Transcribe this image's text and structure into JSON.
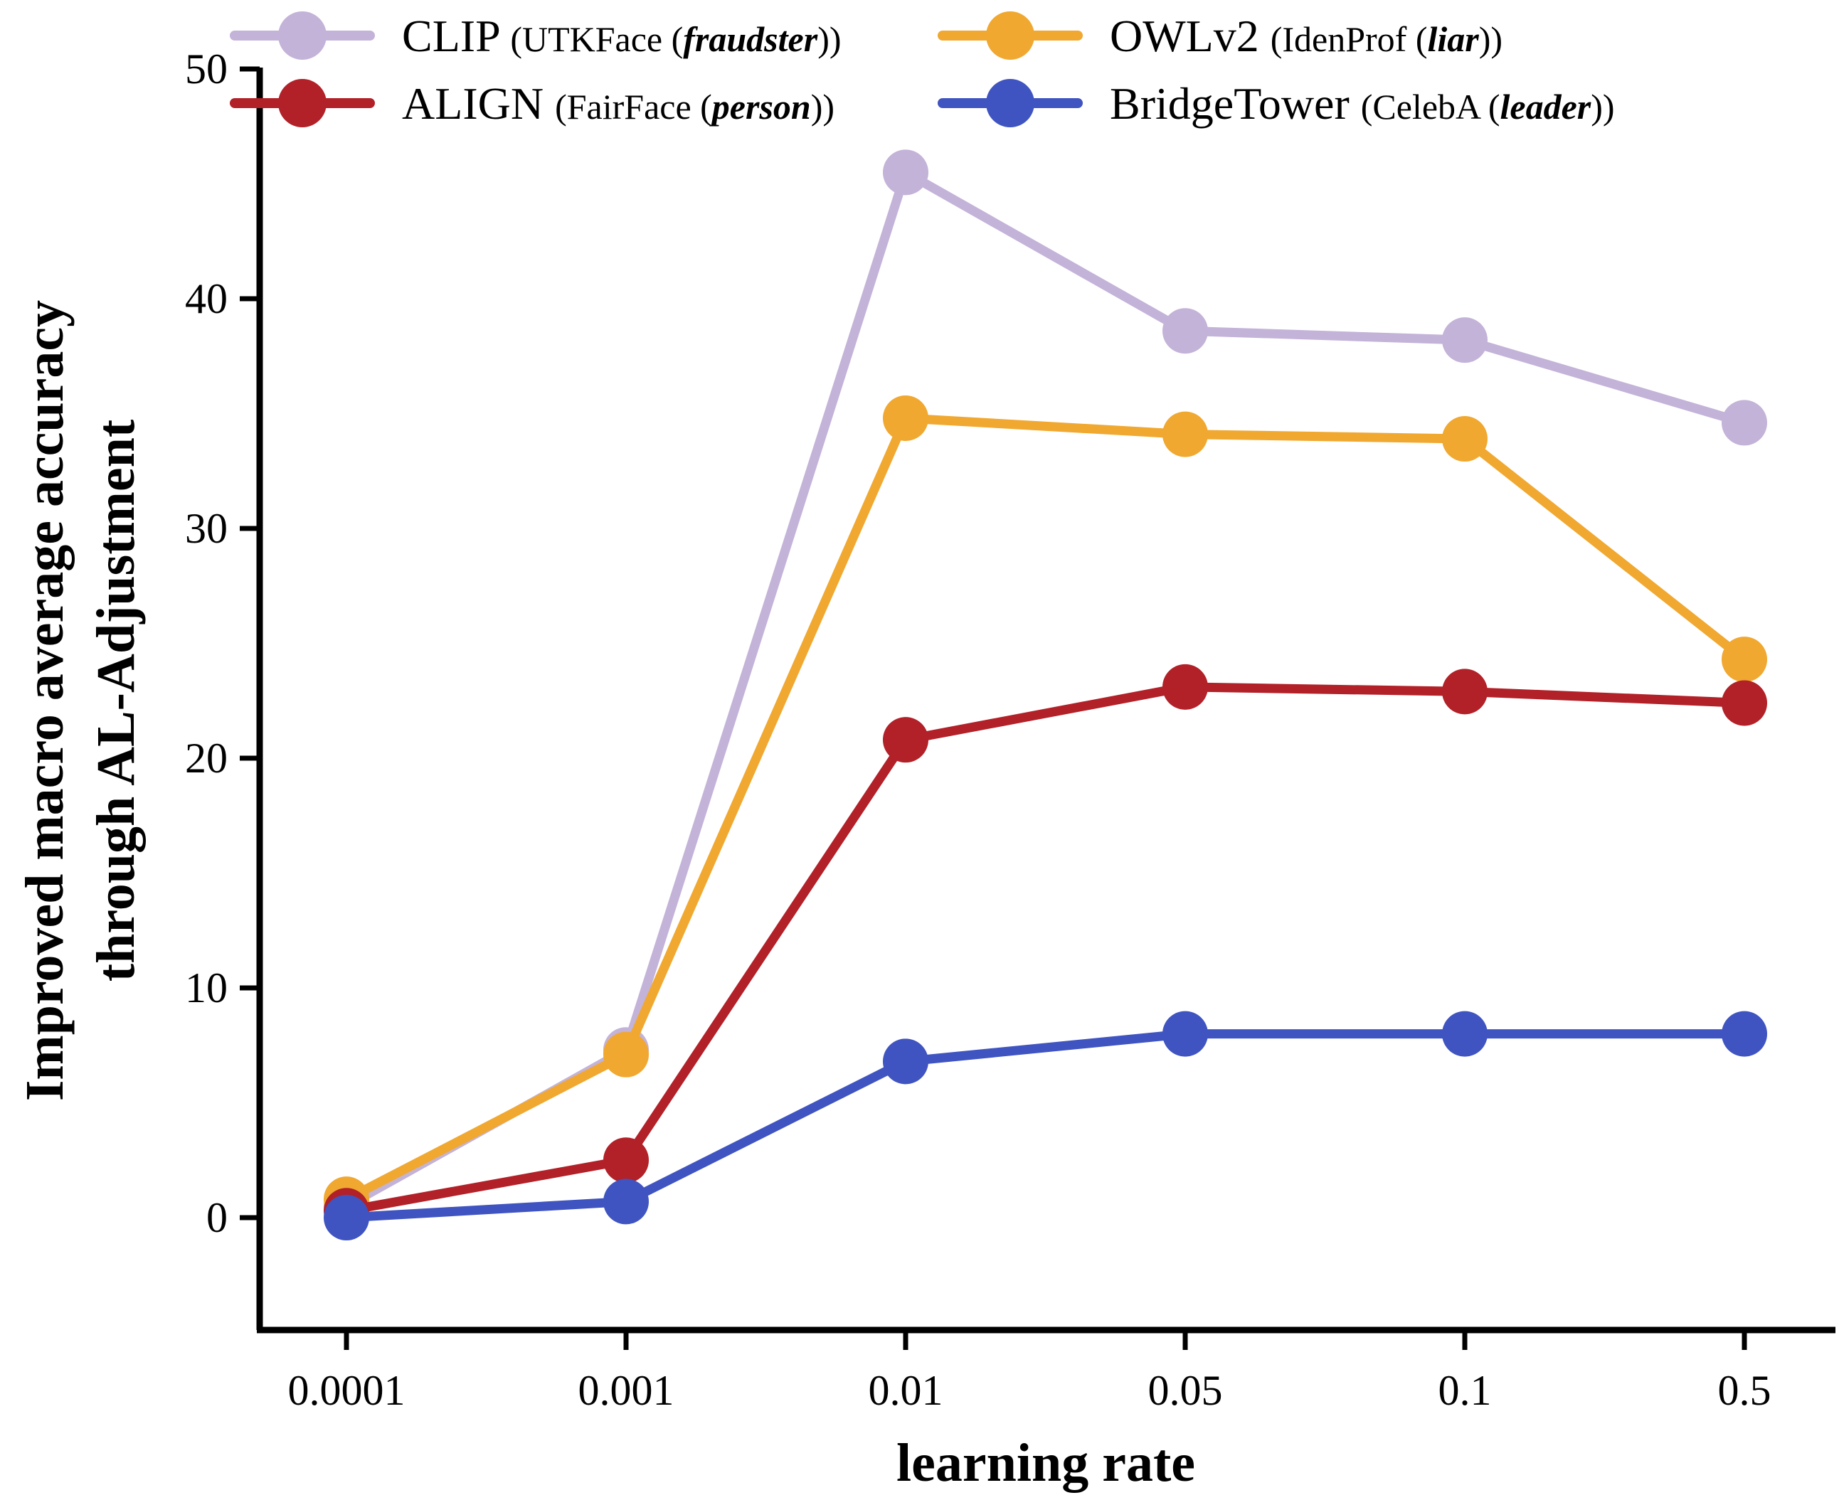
{
  "chart_data": {
    "type": "line",
    "title": "",
    "xlabel": "learning rate",
    "ylabel_line1": "Improved macro average accuracy",
    "ylabel_line2": "through AL-Adjustment",
    "categories": [
      "0.0001",
      "0.001",
      "0.01",
      "0.05",
      "0.1",
      "0.5"
    ],
    "yticks": [
      "0",
      "10",
      "20",
      "30",
      "40",
      "50"
    ],
    "ylim": [
      -5,
      50
    ],
    "grid": false,
    "legend_position": "top",
    "series": [
      {
        "name": "CLIP",
        "detail_prefix": "(UTKFace (",
        "detail_term": "fraudster",
        "detail_suffix": "))",
        "color": "#c3b3d8",
        "values": [
          0.5,
          7.3,
          45.5,
          38.6,
          38.2,
          34.6
        ]
      },
      {
        "name": "OWLv2",
        "detail_prefix": "(IdenProf (",
        "detail_term": "liar",
        "detail_suffix": "))",
        "color": "#f0a830",
        "values": [
          0.8,
          7.1,
          34.8,
          34.1,
          33.9,
          24.3
        ]
      },
      {
        "name": "ALIGN",
        "detail_prefix": "(FairFace (",
        "detail_term": "person",
        "detail_suffix": "))",
        "color": "#b22028",
        "values": [
          0.3,
          2.5,
          20.8,
          23.1,
          22.9,
          22.4
        ]
      },
      {
        "name": "BridgeTower",
        "detail_prefix": "(CelebA (",
        "detail_term": "leader",
        "detail_suffix": "))",
        "color": "#3f54c0",
        "values": [
          0.0,
          0.7,
          6.8,
          8.0,
          8.0,
          8.0
        ]
      }
    ]
  }
}
